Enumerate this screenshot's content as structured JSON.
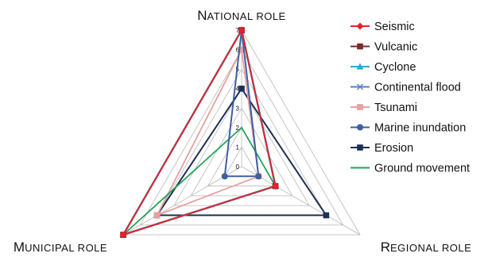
{
  "chart_data": {
    "type": "radar",
    "axes": [
      "National role",
      "Regional role",
      "Municipal role"
    ],
    "axis_labels_display": [
      {
        "first": "N",
        "rest": "ATIONAL ROLE"
      },
      {
        "first": "R",
        "rest": "EGIONAL ROLE"
      },
      {
        "first": "M",
        "rest": "UNICIPAL ROLE"
      }
    ],
    "r_ticks": [
      0,
      1,
      2,
      3,
      4,
      5,
      6,
      7
    ],
    "r_range": [
      0,
      7
    ],
    "grid": true,
    "legend_position": "right",
    "series": [
      {
        "name": "Seismic",
        "values": [
          7,
          2,
          7
        ],
        "color": "#e8202a",
        "marker": "diamond",
        "width": 1.8
      },
      {
        "name": "Vulcanic",
        "values": [
          7,
          2,
          7
        ],
        "color": "#7a2b2b",
        "marker": "square",
        "width": 1.8
      },
      {
        "name": "Cyclone",
        "values": [
          7,
          2,
          7
        ],
        "color": "#2ea8d8",
        "marker": "triangle",
        "width": 2.5
      },
      {
        "name": "Continental flood",
        "values": [
          7,
          2,
          7
        ],
        "color": "#5b7fc0",
        "marker": "x",
        "width": 1.8
      },
      {
        "name": "Tsunami",
        "values": [
          6,
          1,
          5
        ],
        "color": "#e6a09e",
        "marker": "square",
        "width": 1.8
      },
      {
        "name": "Marine inundation",
        "values": [
          7,
          1,
          1
        ],
        "color": "#3f5f9f",
        "marker": "circle",
        "width": 2.0
      },
      {
        "name": "Erosion",
        "values": [
          4,
          5,
          5
        ],
        "color": "#1f2f55",
        "marker": "square",
        "width": 2.0
      },
      {
        "name": "Ground movement",
        "values": [
          2,
          2,
          7
        ],
        "color": "#22a358",
        "marker": "none",
        "width": 1.8
      }
    ]
  }
}
